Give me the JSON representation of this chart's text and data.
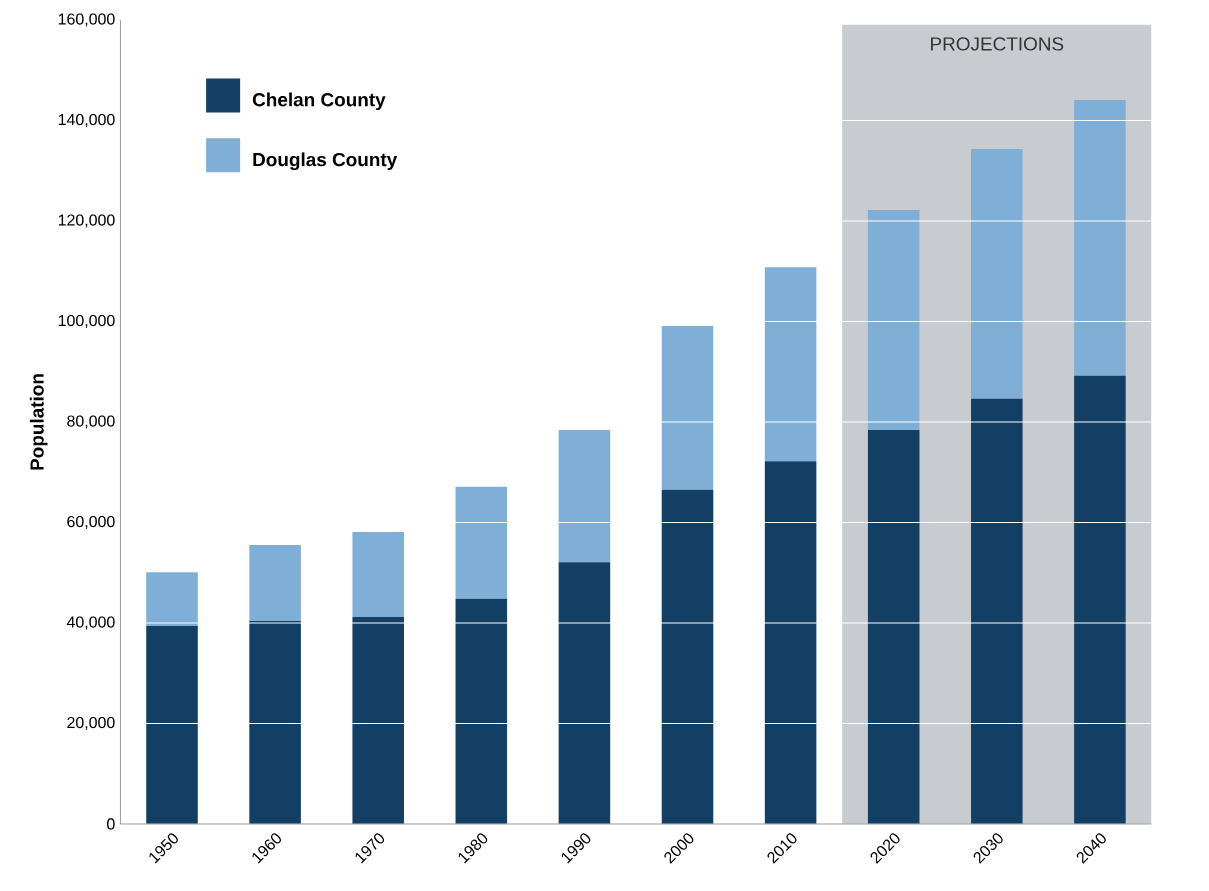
{
  "chart_data": {
    "type": "bar",
    "stacked": true,
    "ylabel": "Population",
    "categories": [
      "1950",
      "1960",
      "1970",
      "1980",
      "1990",
      "2000",
      "2010",
      "2020",
      "2030",
      "2040"
    ],
    "series": [
      {
        "name": "Chelan County",
        "color": "#123f63",
        "values": [
          39400,
          40400,
          41200,
          44800,
          52100,
          66500,
          72200,
          78400,
          84600,
          89200
        ]
      },
      {
        "name": "Douglas County",
        "color": "#7fafd7",
        "values": [
          10700,
          15100,
          16900,
          22300,
          26300,
          32600,
          38600,
          43800,
          49700,
          54900
        ]
      }
    ],
    "ylim": [
      0,
      160000
    ],
    "yticks": [
      0,
      {
        "value": 20000,
        "label": "20,000"
      },
      {
        "value": 40000,
        "label": "40,000"
      },
      {
        "value": 60000,
        "label": "60,000"
      },
      {
        "value": 80000,
        "label": "80,000"
      },
      {
        "value": 100000,
        "label": "100,000"
      },
      {
        "value": 120000,
        "label": "120,000"
      },
      {
        "value": 140000,
        "label": "140,000"
      },
      {
        "value": 160000,
        "label": "160,000"
      }
    ],
    "grid": "y",
    "legend": "top left",
    "bands": [
      {
        "axis": "x",
        "from": "2020",
        "to": "2040",
        "label": "PROJECTIONS",
        "color": "#c8ccd0"
      }
    ]
  }
}
